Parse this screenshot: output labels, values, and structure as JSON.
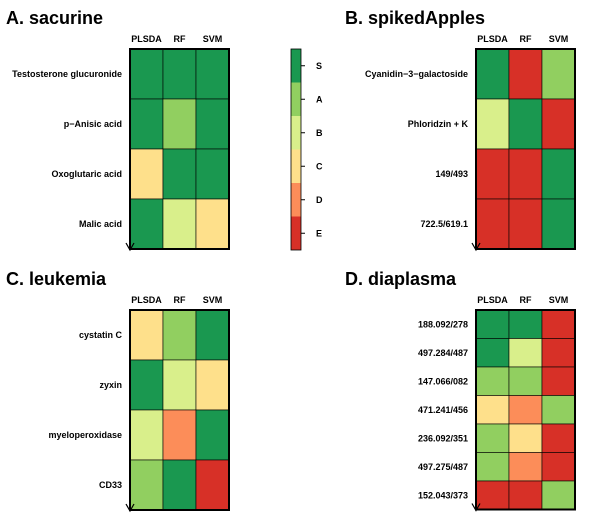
{
  "chart_data": [
    {
      "type": "heatmap",
      "title": "A. sacurine",
      "columns": [
        "PLSDA",
        "RF",
        "SVM"
      ],
      "rows": [
        "Testosterone glucuronide",
        "p−Anisic acid",
        "Oxoglutaric acid",
        "Malic acid"
      ],
      "values": [
        [
          "S",
          "S",
          "S"
        ],
        [
          "S",
          "A",
          "S"
        ],
        [
          "C",
          "S",
          "S"
        ],
        [
          "S",
          "B",
          "C"
        ]
      ]
    },
    {
      "type": "heatmap",
      "title": "B. spikedApples",
      "columns": [
        "PLSDA",
        "RF",
        "SVM"
      ],
      "rows": [
        "Cyanidin−3−galactoside",
        "Phloridzin + K",
        "149/493",
        "722.5/619.1"
      ],
      "values": [
        [
          "S",
          "E",
          "A"
        ],
        [
          "B",
          "S",
          "E"
        ],
        [
          "E",
          "E",
          "S"
        ],
        [
          "E",
          "E",
          "S"
        ]
      ]
    },
    {
      "type": "heatmap",
      "title": "C. leukemia",
      "columns": [
        "PLSDA",
        "RF",
        "SVM"
      ],
      "rows": [
        "cystatin C",
        "zyxin",
        "myeloperoxidase",
        "CD33"
      ],
      "values": [
        [
          "C",
          "A",
          "S"
        ],
        [
          "S",
          "B",
          "C"
        ],
        [
          "B",
          "D",
          "S"
        ],
        [
          "A",
          "S",
          "E"
        ]
      ]
    },
    {
      "type": "heatmap",
      "title": "D. diaplasma",
      "columns": [
        "PLSDA",
        "RF",
        "SVM"
      ],
      "rows": [
        "188.092/278",
        "497.284/487",
        "147.066/082",
        "471.241/456",
        "236.092/351",
        "497.275/487",
        "152.043/373"
      ],
      "values": [
        [
          "S",
          "S",
          "E"
        ],
        [
          "S",
          "B",
          "E"
        ],
        [
          "A",
          "A",
          "E"
        ],
        [
          "C",
          "D",
          "A"
        ],
        [
          "A",
          "C",
          "E"
        ],
        [
          "A",
          "D",
          "E"
        ],
        [
          "E",
          "E",
          "A"
        ]
      ]
    }
  ],
  "legend": {
    "levels": [
      "S",
      "A",
      "B",
      "C",
      "D",
      "E"
    ],
    "colors": {
      "S": "#1a9850",
      "A": "#91cf60",
      "B": "#d9ef8b",
      "C": "#fee08b",
      "D": "#fc8d59",
      "E": "#d73027"
    }
  }
}
